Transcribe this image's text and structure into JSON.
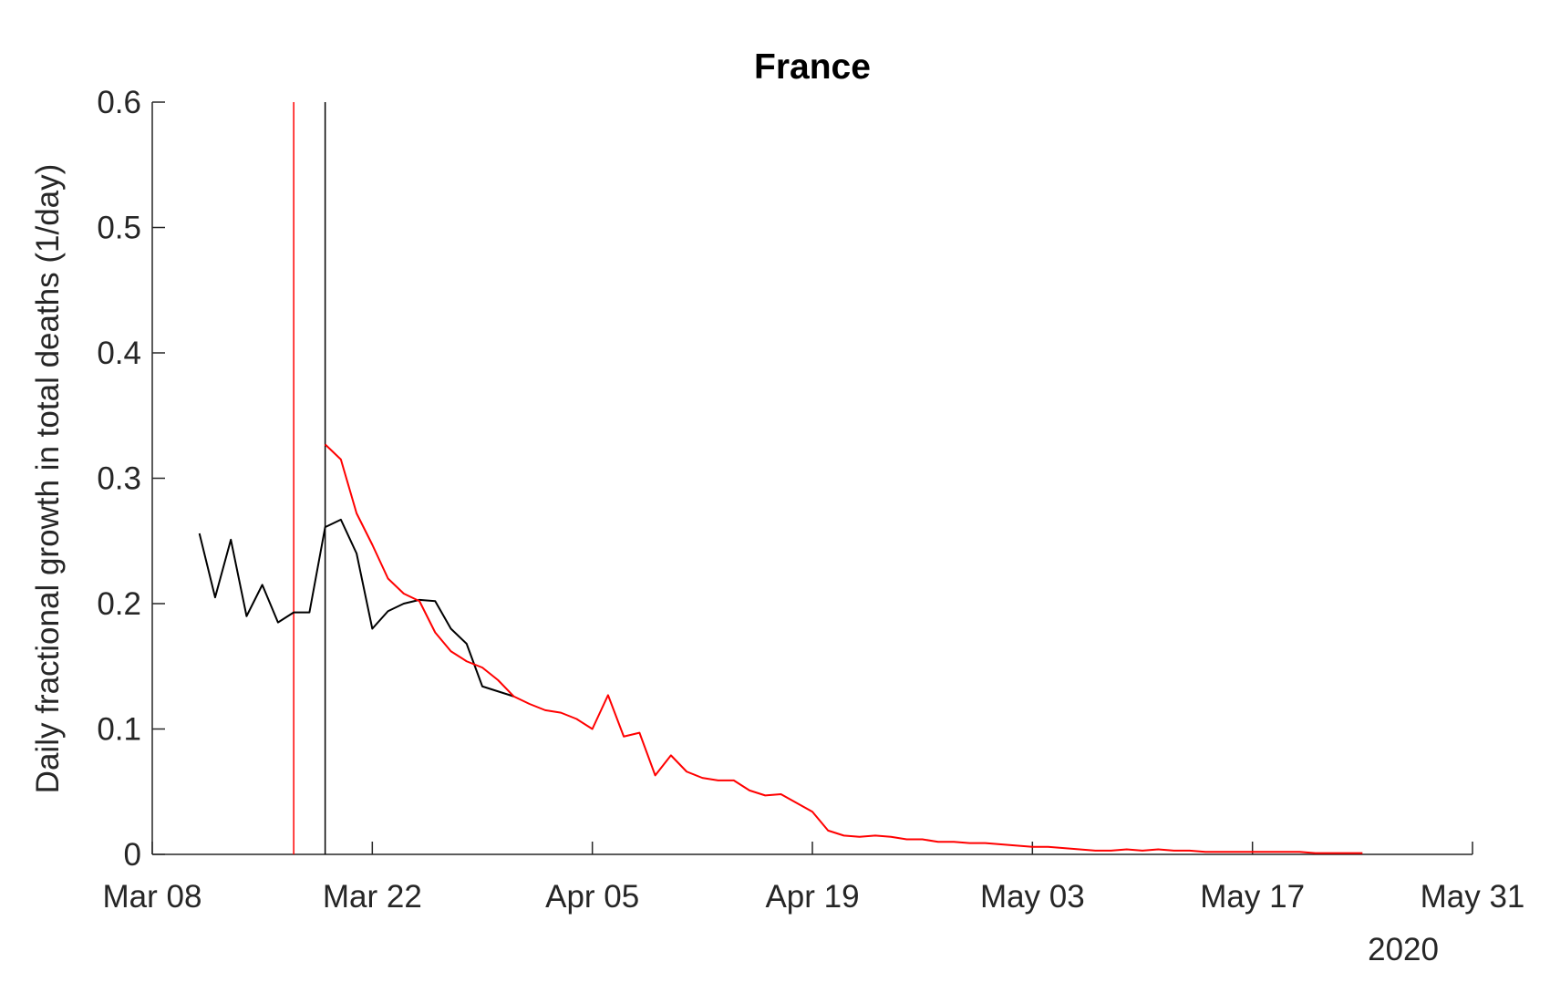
{
  "chart_data": {
    "type": "line",
    "title": "France",
    "ylabel": "Daily fractional growth in total deaths (1/day)",
    "x_secondary_label": "2020",
    "xlim": [
      "2020-03-08",
      "2020-05-31"
    ],
    "xticks": [
      {
        "value": "2020-03-08",
        "label": "Mar 08"
      },
      {
        "value": "2020-03-22",
        "label": "Mar 22"
      },
      {
        "value": "2020-04-05",
        "label": "Apr 05"
      },
      {
        "value": "2020-04-19",
        "label": "Apr 19"
      },
      {
        "value": "2020-05-03",
        "label": "May 03"
      },
      {
        "value": "2020-05-17",
        "label": "May 17"
      },
      {
        "value": "2020-05-31",
        "label": "May 31"
      }
    ],
    "ylim": [
      0,
      0.6
    ],
    "yticks": [
      0,
      0.1,
      0.2,
      0.3,
      0.4,
      0.5,
      0.6
    ],
    "grid": false,
    "vlines": [
      {
        "x": "2020-03-17",
        "color": "#ff0000"
      },
      {
        "x": "2020-03-19",
        "color": "#000000"
      }
    ],
    "series": [
      {
        "color": "#000000",
        "x": [
          "2020-03-11",
          "2020-03-12",
          "2020-03-13",
          "2020-03-14",
          "2020-03-15",
          "2020-03-16",
          "2020-03-17",
          "2020-03-18",
          "2020-03-19",
          "2020-03-20",
          "2020-03-21",
          "2020-03-22",
          "2020-03-23",
          "2020-03-24",
          "2020-03-25",
          "2020-03-26",
          "2020-03-27",
          "2020-03-28",
          "2020-03-29",
          "2020-03-30",
          "2020-03-31"
        ],
        "values": [
          0.256,
          0.205,
          0.251,
          0.19,
          0.215,
          0.185,
          0.193,
          0.193,
          0.261,
          0.267,
          0.24,
          0.18,
          0.194,
          0.2,
          0.203,
          0.202,
          0.18,
          0.168,
          0.134,
          0.13,
          0.126
        ]
      },
      {
        "color": "#ff0000",
        "x": [
          "2020-03-19",
          "2020-03-20",
          "2020-03-21",
          "2020-03-22",
          "2020-03-23",
          "2020-03-24",
          "2020-03-25",
          "2020-03-26",
          "2020-03-27",
          "2020-03-28",
          "2020-03-29",
          "2020-03-30",
          "2020-03-31",
          "2020-04-01",
          "2020-04-02",
          "2020-04-03",
          "2020-04-04",
          "2020-04-05",
          "2020-04-06",
          "2020-04-07",
          "2020-04-08",
          "2020-04-09",
          "2020-04-10",
          "2020-04-11",
          "2020-04-12",
          "2020-04-13",
          "2020-04-14",
          "2020-04-15",
          "2020-04-16",
          "2020-04-17",
          "2020-04-18",
          "2020-04-19",
          "2020-04-20",
          "2020-04-21",
          "2020-04-22",
          "2020-04-23",
          "2020-04-24",
          "2020-04-25",
          "2020-04-26",
          "2020-04-27",
          "2020-04-28",
          "2020-04-29",
          "2020-04-30",
          "2020-05-01",
          "2020-05-02",
          "2020-05-03",
          "2020-05-04",
          "2020-05-05",
          "2020-05-06",
          "2020-05-07",
          "2020-05-08",
          "2020-05-09",
          "2020-05-10",
          "2020-05-11",
          "2020-05-12",
          "2020-05-13",
          "2020-05-14",
          "2020-05-15",
          "2020-05-16",
          "2020-05-17",
          "2020-05-18",
          "2020-05-19",
          "2020-05-20",
          "2020-05-21",
          "2020-05-22",
          "2020-05-23",
          "2020-05-24"
        ],
        "values": [
          0.327,
          0.315,
          0.272,
          0.247,
          0.22,
          0.208,
          0.202,
          0.177,
          0.162,
          0.154,
          0.149,
          0.139,
          0.126,
          0.12,
          0.115,
          0.113,
          0.108,
          0.1,
          0.127,
          0.094,
          0.097,
          0.063,
          0.079,
          0.066,
          0.061,
          0.059,
          0.059,
          0.051,
          0.047,
          0.048,
          0.041,
          0.034,
          0.019,
          0.015,
          0.014,
          0.015,
          0.014,
          0.012,
          0.012,
          0.01,
          0.01,
          0.009,
          0.009,
          0.008,
          0.007,
          0.006,
          0.006,
          0.005,
          0.004,
          0.003,
          0.003,
          0.004,
          0.003,
          0.004,
          0.003,
          0.003,
          0.002,
          0.002,
          0.002,
          0.002,
          0.002,
          0.002,
          0.002,
          0.001,
          0.001,
          0.001,
          0.001
        ]
      }
    ]
  }
}
